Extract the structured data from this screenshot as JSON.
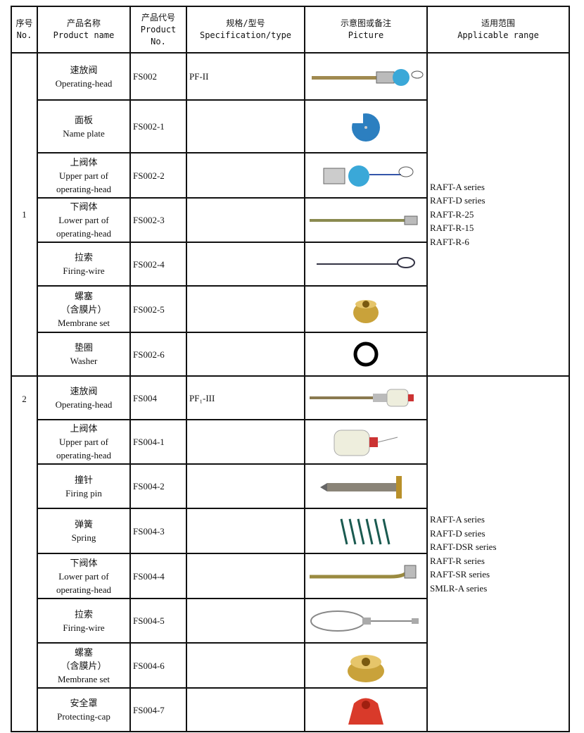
{
  "header": {
    "no": [
      "序号",
      "No."
    ],
    "name": [
      "产品名称",
      "Product name"
    ],
    "code": [
      "产品代号",
      "Product",
      "No."
    ],
    "spec": [
      "规格/型号",
      "Specification/type"
    ],
    "picture": [
      "示意图或备注",
      "Picture"
    ],
    "range": [
      "适用范围",
      "Applicable range"
    ]
  },
  "groups": [
    {
      "no": "1",
      "range": [
        "RAFT-A series",
        "RAFT-D series",
        "RAFT-R-25",
        "RAFT-R-15",
        "RAFT-R-6"
      ],
      "rows": [
        {
          "name": [
            "速放阀",
            "Operating-head"
          ],
          "code": "FS002",
          "spec": "PF-II",
          "pic": "operating-head-blue-icon"
        },
        {
          "name": [
            "面板",
            "Name plate"
          ],
          "code": "FS002-1",
          "spec": "",
          "pic": "name-plate-icon"
        },
        {
          "name": [
            "上阀体",
            "Upper part of",
            "operating-head"
          ],
          "code": "FS002-2",
          "spec": "",
          "pic": "upper-head-blue-icon"
        },
        {
          "name": [
            "下阀体",
            "Lower part of",
            "operating-head"
          ],
          "code": "FS002-3",
          "spec": "",
          "pic": "lower-rod-icon"
        },
        {
          "name": [
            "拉索",
            "Firing-wire"
          ],
          "code": "FS002-4",
          "spec": "",
          "pic": "firing-wire-small-icon"
        },
        {
          "name": [
            "螺塞",
            "（含膜片）",
            "Membrane set"
          ],
          "code": "FS002-5",
          "spec": "",
          "pic": "membrane-plug-icon"
        },
        {
          "name": [
            "垫圈",
            "Washer"
          ],
          "code": "FS002-6",
          "spec": "",
          "pic": "washer-icon"
        }
      ]
    },
    {
      "no": "2",
      "range": [
        "RAFT-A series",
        "RAFT-D series",
        "RAFT-DSR series",
        "RAFT-R series",
        "RAFT-SR series",
        "SMLR-A series"
      ],
      "rows": [
        {
          "name": [
            "速放阀",
            "Operating-head"
          ],
          "code": "FS004",
          "spec": "PF₁-III",
          "pic": "operating-head-white-icon"
        },
        {
          "name": [
            "上阀体",
            "Upper part of",
            "operating-head"
          ],
          "code": "FS004-1",
          "spec": "",
          "pic": "upper-head-white-icon"
        },
        {
          "name": [
            "撞针",
            "Firing pin"
          ],
          "code": "FS004-2",
          "spec": "",
          "pic": "firing-pin-icon"
        },
        {
          "name": [
            "弹簧",
            "Spring"
          ],
          "code": "FS004-3",
          "spec": "",
          "pic": "spring-icon"
        },
        {
          "name": [
            "下阀体",
            "Lower part of",
            "operating-head"
          ],
          "code": "FS004-4",
          "spec": "",
          "pic": "lower-bent-rod-icon"
        },
        {
          "name": [
            "拉索",
            "Firing-wire"
          ],
          "code": "FS004-5",
          "spec": "",
          "pic": "firing-wire-loop-icon"
        },
        {
          "name": [
            "螺塞",
            "（含膜片）",
            "Membrane set"
          ],
          "code": "FS004-6",
          "spec": "",
          "pic": "membrane-plug-large-icon"
        },
        {
          "name": [
            "安全罩",
            "Protecting-cap"
          ],
          "code": "FS004-7",
          "spec": "",
          "pic": "protecting-cap-icon"
        }
      ]
    }
  ]
}
